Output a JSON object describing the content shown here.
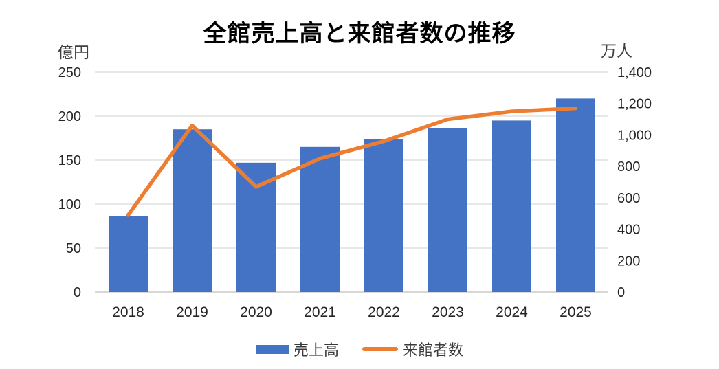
{
  "chart_data": {
    "type": "combo-bar-line",
    "title": "全館売上高と来館者数の推移",
    "categories": [
      "2018",
      "2019",
      "2020",
      "2021",
      "2022",
      "2023",
      "2024",
      "2025"
    ],
    "series": [
      {
        "name": "売上高",
        "type": "bar",
        "axis": "left",
        "unit": "億円",
        "color": "#4472C4",
        "values": [
          86,
          185,
          147,
          165,
          174,
          186,
          195,
          220
        ]
      },
      {
        "name": "来館者数",
        "type": "line",
        "axis": "right",
        "unit": "万人",
        "color": "#ED7D31",
        "values": [
          490,
          1060,
          670,
          850,
          960,
          1100,
          1150,
          1170
        ]
      }
    ],
    "left_axis": {
      "label": "億円",
      "min": 0,
      "max": 250,
      "tick_step": 50,
      "ticks": [
        0,
        50,
        100,
        150,
        200,
        250
      ],
      "tick_labels": [
        "0",
        "50",
        "100",
        "150",
        "200",
        "250"
      ]
    },
    "right_axis": {
      "label": "万人",
      "min": 0,
      "max": 1400,
      "tick_step": 200,
      "ticks": [
        0,
        200,
        400,
        600,
        800,
        1000,
        1200,
        1400
      ],
      "tick_labels": [
        "0",
        "200",
        "400",
        "600",
        "800",
        "1,000",
        "1,200",
        "1,400"
      ]
    },
    "grid": "horizontal gridlines at left-axis ticks",
    "legend_position": "bottom"
  },
  "colors": {
    "bar": "#4472C4",
    "line": "#ED7D31",
    "gridline": "#D9D9D9",
    "axis_line": "#BFBFBF",
    "tick_text": "#262626",
    "title_text": "#000000",
    "background": "#FFFFFF"
  }
}
